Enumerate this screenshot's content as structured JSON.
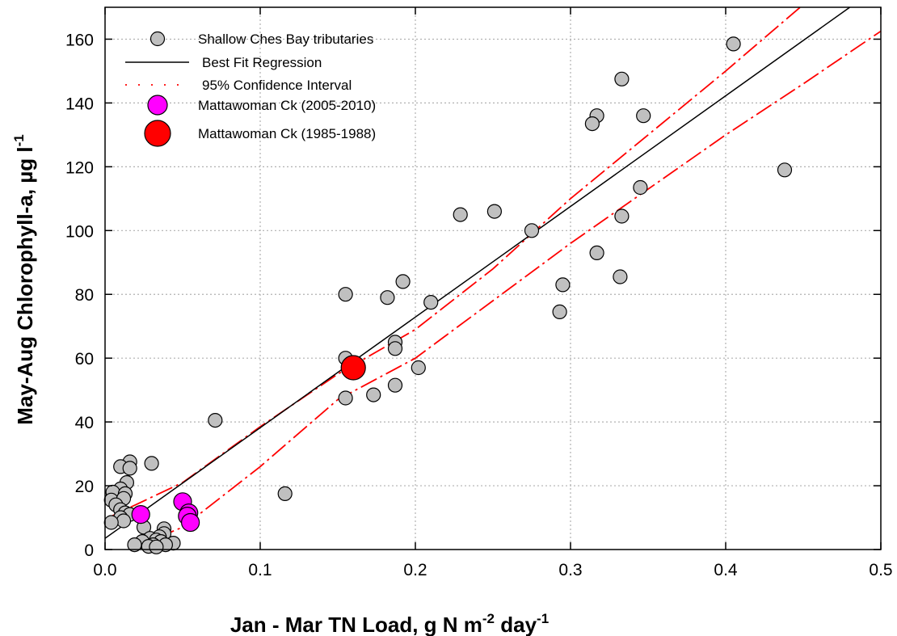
{
  "chart_data": {
    "type": "scatter",
    "xlabel_main": "Jan - Mar TN Load, g N m",
    "xlabel_sup1": "-2",
    "xlabel_mid": " day",
    "xlabel_sup2": "-1",
    "ylabel_main": "May-Aug Chlorophyll-a, µg l",
    "ylabel_sup": "-1",
    "xlim": [
      0,
      0.5
    ],
    "ylim": [
      0,
      170
    ],
    "x_ticks": [
      0.0,
      0.1,
      0.2,
      0.3,
      0.4,
      0.5
    ],
    "x_tick_labels": [
      "0.0",
      "0.1",
      "0.2",
      "0.3",
      "0.4",
      "0.5"
    ],
    "y_ticks": [
      0,
      20,
      40,
      60,
      80,
      100,
      120,
      140,
      160
    ],
    "y_tick_labels": [
      "0",
      "20",
      "40",
      "60",
      "80",
      "100",
      "120",
      "140",
      "160"
    ],
    "grid": true,
    "legend_position": "top-left",
    "colors": {
      "tributaries": "#c0c0c0",
      "mattawoman_recent": "#ff00ff",
      "mattawoman_historic": "#ff0000",
      "regression": "#000000",
      "confidence": "#ff0000"
    },
    "legend": [
      {
        "label": "Shallow Ches Bay tributaries",
        "kind": "gray-circle"
      },
      {
        "label": "Best Fit Regression",
        "kind": "solid-line"
      },
      {
        "label": "95% Confidence Interval",
        "kind": "dashdot-line"
      },
      {
        "label": "Mattawoman Ck (2005-2010)",
        "kind": "magenta-circle"
      },
      {
        "label": "Mattawoman Ck (1985-1988)",
        "kind": "red-circle"
      }
    ],
    "series": [
      {
        "name": "Shallow Ches Bay tributaries",
        "points": [
          [
            0.405,
            158.5
          ],
          [
            0.333,
            147.5
          ],
          [
            0.317,
            136
          ],
          [
            0.347,
            136
          ],
          [
            0.314,
            133.5
          ],
          [
            0.438,
            119
          ],
          [
            0.345,
            113.5
          ],
          [
            0.333,
            104.5
          ],
          [
            0.229,
            105
          ],
          [
            0.251,
            106
          ],
          [
            0.275,
            100
          ],
          [
            0.317,
            93
          ],
          [
            0.332,
            85.5
          ],
          [
            0.295,
            83
          ],
          [
            0.293,
            74.5
          ],
          [
            0.192,
            84
          ],
          [
            0.155,
            80
          ],
          [
            0.182,
            79
          ],
          [
            0.21,
            77.5
          ],
          [
            0.187,
            65
          ],
          [
            0.187,
            63
          ],
          [
            0.155,
            60
          ],
          [
            0.202,
            57
          ],
          [
            0.187,
            51.5
          ],
          [
            0.173,
            48.5
          ],
          [
            0.155,
            47.5
          ],
          [
            0.071,
            40.5
          ],
          [
            0.116,
            17.5
          ],
          [
            0.016,
            27.5
          ],
          [
            0.03,
            27
          ],
          [
            0.01,
            26
          ],
          [
            0.016,
            25.5
          ],
          [
            0.014,
            21
          ],
          [
            0.01,
            19
          ],
          [
            0.005,
            18
          ],
          [
            0.013,
            17.5
          ],
          [
            0.004,
            15.5
          ],
          [
            0.012,
            16
          ],
          [
            0.007,
            14
          ],
          [
            0.01,
            12.5
          ],
          [
            0.013,
            11.5
          ],
          [
            0.016,
            11
          ],
          [
            0.01,
            10
          ],
          [
            0.012,
            9
          ],
          [
            0.004,
            8.5
          ],
          [
            0.025,
            7
          ],
          [
            0.038,
            6.5
          ],
          [
            0.038,
            5
          ],
          [
            0.035,
            4
          ],
          [
            0.029,
            3.5
          ],
          [
            0.033,
            3
          ],
          [
            0.024,
            2.5
          ],
          [
            0.036,
            2.5
          ],
          [
            0.044,
            2
          ],
          [
            0.019,
            1.5
          ],
          [
            0.031,
            1.5
          ],
          [
            0.039,
            1.5
          ],
          [
            0.028,
            1
          ],
          [
            0.033,
            0.8
          ]
        ]
      },
      {
        "name": "Mattawoman Ck (2005-2010)",
        "points": [
          [
            0.023,
            11
          ],
          [
            0.05,
            15
          ],
          [
            0.054,
            11.5
          ],
          [
            0.053,
            10.5
          ],
          [
            0.055,
            8.5
          ]
        ]
      },
      {
        "name": "Mattawoman Ck (1985-1988)",
        "points": [
          [
            0.16,
            57
          ]
        ]
      }
    ],
    "regression": {
      "name": "Best Fit Regression",
      "line": [
        [
          0.0,
          3.5
        ],
        [
          0.48,
          170
        ]
      ]
    },
    "confidence_interval": {
      "name": "95% Confidence Interval",
      "upper": [
        [
          0.0,
          9.5
        ],
        [
          0.05,
          21
        ],
        [
          0.1,
          38.5
        ],
        [
          0.15,
          55
        ],
        [
          0.2,
          69
        ],
        [
          0.25,
          88
        ],
        [
          0.3,
          110
        ],
        [
          0.35,
          130
        ],
        [
          0.4,
          150
        ],
        [
          0.448,
          170
        ]
      ],
      "lower": [
        [
          0.0,
          -3
        ],
        [
          0.05,
          7
        ],
        [
          0.1,
          26
        ],
        [
          0.15,
          47
        ],
        [
          0.2,
          60
        ],
        [
          0.25,
          78
        ],
        [
          0.3,
          96
        ],
        [
          0.35,
          113
        ],
        [
          0.4,
          130
        ],
        [
          0.45,
          146
        ],
        [
          0.5,
          162.5
        ]
      ]
    }
  }
}
